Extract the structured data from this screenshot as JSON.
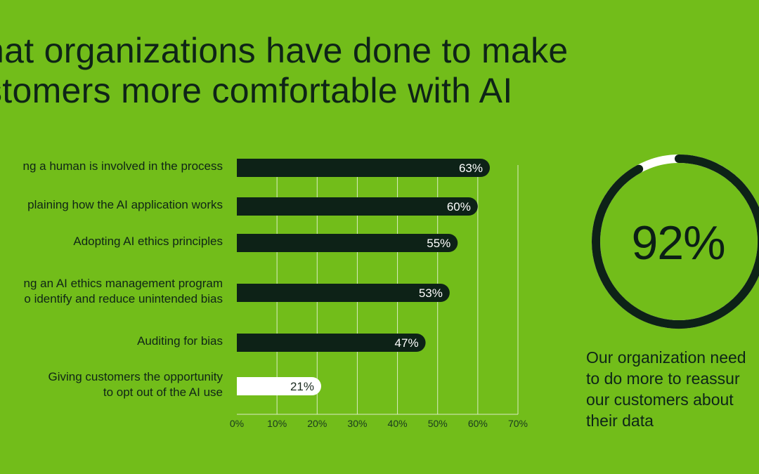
{
  "title_lines": [
    "hat organizations have done to make",
    "stomers more comfortable with AI"
  ],
  "chart_data": [
    {
      "type": "bar",
      "orientation": "horizontal",
      "categories": [
        [
          "ng a human is involved in the process"
        ],
        [
          "plaining how the AI application works"
        ],
        [
          "Adopting AI ethics principles"
        ],
        [
          "ng an AI ethics management program",
          "o identify and reduce unintended bias"
        ],
        [
          "Auditing for bias"
        ],
        [
          "Giving customers the opportunity",
          "to opt out of the AI use"
        ]
      ],
      "values": [
        63,
        60,
        55,
        53,
        47,
        21
      ],
      "data_labels": [
        "63%",
        "60%",
        "55%",
        "53%",
        "47%",
        "21%"
      ],
      "highlight_index": 5,
      "xlim": [
        0,
        70
      ],
      "x_ticks": [
        "0%",
        "10%",
        "20%",
        "30%",
        "40%",
        "50%",
        "60%",
        "70%"
      ],
      "grid": true,
      "colors": {
        "bar": "#0d2217",
        "highlight_bar": "#ffffff",
        "grid": "#d9ecc4",
        "axis_text": "#19391e"
      }
    },
    {
      "type": "pie",
      "variant": "donut",
      "value": 92,
      "label": "92%",
      "colors": {
        "filled": "#0d2217",
        "remaining": "#ffffff"
      }
    }
  ],
  "caption_lines": [
    "Our organization need",
    "to do more to reassur",
    "our customers about",
    "their data"
  ]
}
